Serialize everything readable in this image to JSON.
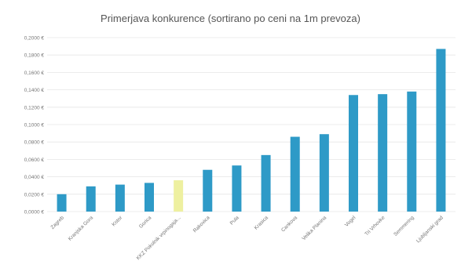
{
  "chart_data": {
    "type": "bar",
    "title": "Primerjava konkurence (sortirano po ceni na 1m prevoza)",
    "xlabel": "",
    "ylabel": "",
    "ylim": [
      0,
      0.2
    ],
    "yticks": [
      "0,0000 €",
      "0,0200 €",
      "0,0400 €",
      "0,0600 €",
      "0,0800 €",
      "0,1000 €",
      "0,1200 €",
      "0,1400 €",
      "0,1600 €",
      "0,1800 €",
      "0,2000 €"
    ],
    "grid": true,
    "legend": "none",
    "categories": [
      "Zagreb",
      "Kranjska Gora",
      "Kotor",
      "Gorica",
      "KKZ Pokolnik vrpinogaja...",
      "Rakovica",
      "Pula",
      "Krasica",
      "Cankova",
      "Velika Planina",
      "Vogel",
      "Tri Vrhovke",
      "Semmering",
      "Ljubljanski grad"
    ],
    "values": [
      0.02,
      0.029,
      0.031,
      0.033,
      0.036,
      0.048,
      0.053,
      0.065,
      0.086,
      0.089,
      0.134,
      0.135,
      0.138,
      0.187
    ],
    "colors": {
      "bar": "#2e9ac7",
      "highlight": "#eef0a0",
      "grid": "#e6e6e6"
    },
    "highlight_index": 4
  }
}
